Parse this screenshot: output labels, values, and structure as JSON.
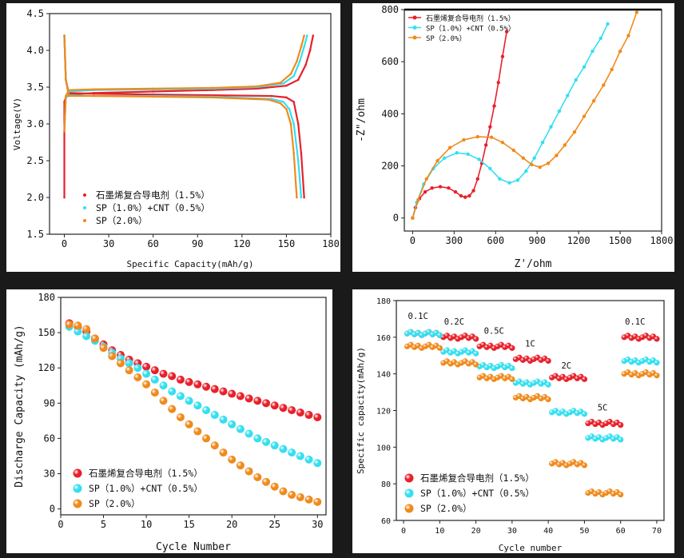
{
  "colors": {
    "red": "#e8202a",
    "cyan": "#34dff0",
    "orange": "#f08a1c",
    "background": "#1a1a1a"
  },
  "series_names": [
    "石墨烯复合导电剂（1.5%）",
    "SP（1.0%）+CNT（0.5%）",
    "SP（2.0%）"
  ],
  "chart_data": [
    {
      "id": "voltage",
      "type": "line",
      "title": "",
      "xlabel": "Specific Capacity(mAh/g)",
      "ylabel": "Voltage(V)",
      "xlim": [
        -10,
        180
      ],
      "ylim": [
        1.5,
        4.5
      ],
      "xticks": [
        "0",
        "30",
        "60",
        "90",
        "120",
        "150",
        "180"
      ],
      "yticks": [
        "1.5",
        "2.0",
        "2.5",
        "3.0",
        "3.5",
        "4.0",
        "4.5"
      ],
      "legend_position": "bottom-left",
      "series": [
        {
          "name": "石墨烯复合导电剂（1.5%）",
          "color": "red",
          "charge": [
            [
              0,
              2.0
            ],
            [
              0,
              3.3
            ],
            [
              1,
              3.36
            ],
            [
              3,
              3.4
            ],
            [
              20,
              3.42
            ],
            [
              60,
              3.44
            ],
            [
              100,
              3.46
            ],
            [
              130,
              3.48
            ],
            [
              150,
              3.52
            ],
            [
              158,
              3.6
            ],
            [
              163,
              3.8
            ],
            [
              166,
              4.0
            ],
            [
              168,
              4.2
            ]
          ],
          "discharge": [
            [
              0,
              4.2
            ],
            [
              1,
              3.6
            ],
            [
              3,
              3.42
            ],
            [
              20,
              3.41
            ],
            [
              60,
              3.4
            ],
            [
              100,
              3.39
            ],
            [
              140,
              3.38
            ],
            [
              150,
              3.36
            ],
            [
              155,
              3.3
            ],
            [
              158,
              3.0
            ],
            [
              160,
              2.6
            ],
            [
              162,
              2.0
            ]
          ]
        },
        {
          "name": "SP（1.0%）+CNT（0.5%）",
          "color": "cyan",
          "charge": [
            [
              0,
              2.9
            ],
            [
              1,
              3.35
            ],
            [
              3,
              3.44
            ],
            [
              20,
              3.46
            ],
            [
              60,
              3.47
            ],
            [
              100,
              3.48
            ],
            [
              130,
              3.5
            ],
            [
              148,
              3.55
            ],
            [
              155,
              3.65
            ],
            [
              159,
              3.85
            ],
            [
              162,
              4.05
            ],
            [
              164,
              4.2
            ]
          ],
          "discharge": [
            [
              0,
              4.2
            ],
            [
              1,
              3.6
            ],
            [
              3,
              3.39
            ],
            [
              20,
              3.38
            ],
            [
              60,
              3.38
            ],
            [
              100,
              3.37
            ],
            [
              140,
              3.34
            ],
            [
              148,
              3.3
            ],
            [
              152,
              3.2
            ],
            [
              155,
              3.0
            ],
            [
              158,
              2.5
            ],
            [
              160,
              2.0
            ]
          ]
        },
        {
          "name": "SP（2.0%）",
          "color": "orange",
          "charge": [
            [
              0,
              2.9
            ],
            [
              1,
              3.38
            ],
            [
              3,
              3.46
            ],
            [
              20,
              3.47
            ],
            [
              60,
              3.48
            ],
            [
              100,
              3.49
            ],
            [
              130,
              3.51
            ],
            [
              146,
              3.56
            ],
            [
              153,
              3.68
            ],
            [
              157,
              3.85
            ],
            [
              160,
              4.05
            ],
            [
              162,
              4.2
            ]
          ],
          "discharge": [
            [
              0,
              4.2
            ],
            [
              1,
              3.6
            ],
            [
              3,
              3.38
            ],
            [
              20,
              3.38
            ],
            [
              60,
              3.37
            ],
            [
              100,
              3.36
            ],
            [
              138,
              3.33
            ],
            [
              146,
              3.28
            ],
            [
              150,
              3.2
            ],
            [
              153,
              3.0
            ],
            [
              155,
              2.6
            ],
            [
              157,
              2.0
            ]
          ]
        }
      ]
    },
    {
      "id": "eis",
      "type": "line",
      "title": "",
      "xlabel": "Z'/ohm",
      "ylabel": "-Z\"/ohm",
      "xlim": [
        -60,
        1800
      ],
      "ylim": [
        -50,
        800
      ],
      "xticks": [
        "0",
        "300",
        "600",
        "900",
        "1200",
        "1500",
        "1800"
      ],
      "yticks": [
        "0",
        "200",
        "400",
        "600",
        "800"
      ],
      "legend_position": "top-left",
      "series": [
        {
          "name": "石墨烯复合导电剂（1.5%）",
          "color": "red",
          "points": [
            [
              0,
              0
            ],
            [
              20,
              40
            ],
            [
              50,
              75
            ],
            [
              90,
              100
            ],
            [
              140,
              115
            ],
            [
              200,
              120
            ],
            [
              260,
              115
            ],
            [
              310,
              100
            ],
            [
              350,
              85
            ],
            [
              380,
              80
            ],
            [
              410,
              85
            ],
            [
              440,
              105
            ],
            [
              470,
              150
            ],
            [
              500,
              210
            ],
            [
              530,
              280
            ],
            [
              560,
              350
            ],
            [
              590,
              430
            ],
            [
              620,
              520
            ],
            [
              650,
              620
            ],
            [
              680,
              715
            ]
          ]
        },
        {
          "name": "SP（1.0%）+CNT（0.5%）",
          "color": "cyan",
          "points": [
            [
              0,
              0
            ],
            [
              30,
              60
            ],
            [
              80,
              130
            ],
            [
              150,
              190
            ],
            [
              230,
              230
            ],
            [
              320,
              250
            ],
            [
              400,
              245
            ],
            [
              480,
              225
            ],
            [
              560,
              190
            ],
            [
              630,
              150
            ],
            [
              700,
              135
            ],
            [
              760,
              145
            ],
            [
              820,
              180
            ],
            [
              880,
              230
            ],
            [
              940,
              290
            ],
            [
              1000,
              350
            ],
            [
              1060,
              410
            ],
            [
              1120,
              470
            ],
            [
              1180,
              530
            ],
            [
              1240,
              580
            ],
            [
              1300,
              640
            ],
            [
              1360,
              690
            ],
            [
              1410,
              745
            ]
          ]
        },
        {
          "name": "SP（2.0%）",
          "color": "orange",
          "points": [
            [
              0,
              0
            ],
            [
              40,
              70
            ],
            [
              100,
              150
            ],
            [
              180,
              220
            ],
            [
              270,
              270
            ],
            [
              370,
              300
            ],
            [
              470,
              312
            ],
            [
              570,
              310
            ],
            [
              650,
              290
            ],
            [
              730,
              260
            ],
            [
              800,
              230
            ],
            [
              860,
              205
            ],
            [
              920,
              195
            ],
            [
              980,
              210
            ],
            [
              1040,
              240
            ],
            [
              1100,
              280
            ],
            [
              1170,
              330
            ],
            [
              1240,
              390
            ],
            [
              1310,
              450
            ],
            [
              1380,
              510
            ],
            [
              1440,
              570
            ],
            [
              1500,
              640
            ],
            [
              1560,
              700
            ],
            [
              1620,
              790
            ]
          ]
        }
      ]
    },
    {
      "id": "cycle",
      "type": "scatter",
      "title": "",
      "xlabel": "Cycle Number",
      "ylabel": "Discharge Capacity (mAh/g)",
      "xlim": [
        0,
        31
      ],
      "ylim": [
        -5,
        180
      ],
      "xticks": [
        "0",
        "5",
        "10",
        "15",
        "20",
        "25",
        "30"
      ],
      "yticks": [
        "0",
        "30",
        "60",
        "90",
        "120",
        "150",
        "180"
      ],
      "legend_position": "bottom-left",
      "x": [
        1,
        2,
        3,
        4,
        5,
        6,
        7,
        8,
        9,
        10,
        11,
        12,
        13,
        14,
        15,
        16,
        17,
        18,
        19,
        20,
        21,
        22,
        23,
        24,
        25,
        26,
        27,
        28,
        29,
        30
      ],
      "series": [
        {
          "name": "石墨烯复合导电剂（1.5%）",
          "color": "red",
          "values": [
            158,
            155,
            151,
            145,
            140,
            135,
            131,
            127,
            124,
            121,
            118,
            115,
            113,
            110,
            108,
            106,
            104,
            102,
            100,
            98,
            96,
            94,
            92,
            90,
            88,
            86,
            84,
            82,
            80,
            78
          ]
        },
        {
          "name": "SP（1.0%）+CNT（0.5%）",
          "color": "cyan",
          "values": [
            155,
            151,
            147,
            143,
            138,
            133,
            128,
            124,
            120,
            115,
            110,
            105,
            100,
            96,
            92,
            88,
            84,
            80,
            76,
            72,
            68,
            64,
            60,
            57,
            54,
            51,
            48,
            45,
            42,
            39
          ]
        },
        {
          "name": "SP（2.0%）",
          "color": "orange",
          "values": [
            157,
            156,
            153,
            145,
            137,
            130,
            124,
            118,
            112,
            106,
            99,
            92,
            85,
            78,
            72,
            66,
            60,
            54,
            48,
            42,
            37,
            32,
            27,
            23,
            19,
            15,
            12,
            10,
            8,
            6
          ]
        }
      ]
    },
    {
      "id": "rate",
      "type": "scatter",
      "title": "",
      "xlabel": "Cycle number",
      "ylabel": "Specific capacity(mAh/g)",
      "xlim": [
        -2,
        72
      ],
      "ylim": [
        60,
        180
      ],
      "xticks": [
        "0",
        "10",
        "20",
        "30",
        "40",
        "50",
        "60",
        "70"
      ],
      "yticks": [
        "60",
        "80",
        "100",
        "120",
        "140",
        "160",
        "180"
      ],
      "legend_position": "bottom-left",
      "rate_labels": [
        {
          "text": "0.1C",
          "x": 4,
          "y": 170
        },
        {
          "text": "0.2C",
          "x": 14,
          "y": 167
        },
        {
          "text": "0.5C",
          "x": 25,
          "y": 162
        },
        {
          "text": "1C",
          "x": 35,
          "y": 155
        },
        {
          "text": "2C",
          "x": 45,
          "y": 143
        },
        {
          "text": "5C",
          "x": 55,
          "y": 120
        },
        {
          "text": "0.1C",
          "x": 64,
          "y": 167
        }
      ],
      "segments": [
        [
          1,
          10
        ],
        [
          11,
          20
        ],
        [
          21,
          30
        ],
        [
          31,
          40
        ],
        [
          41,
          50
        ],
        [
          51,
          60
        ],
        [
          61,
          70
        ]
      ],
      "series": [
        {
          "name": "石墨烯复合导电剂（1.5%）",
          "color": "red",
          "levels": [
            162,
            160,
            155,
            148,
            138,
            113,
            160
          ]
        },
        {
          "name": "SP（1.0%）+CNT（0.5%）",
          "color": "cyan",
          "levels": [
            162,
            152,
            144,
            135,
            119,
            105,
            147
          ]
        },
        {
          "name": "SP（2.0%）",
          "color": "orange",
          "levels": [
            155,
            146,
            138,
            127,
            91,
            75,
            140
          ]
        }
      ]
    }
  ]
}
